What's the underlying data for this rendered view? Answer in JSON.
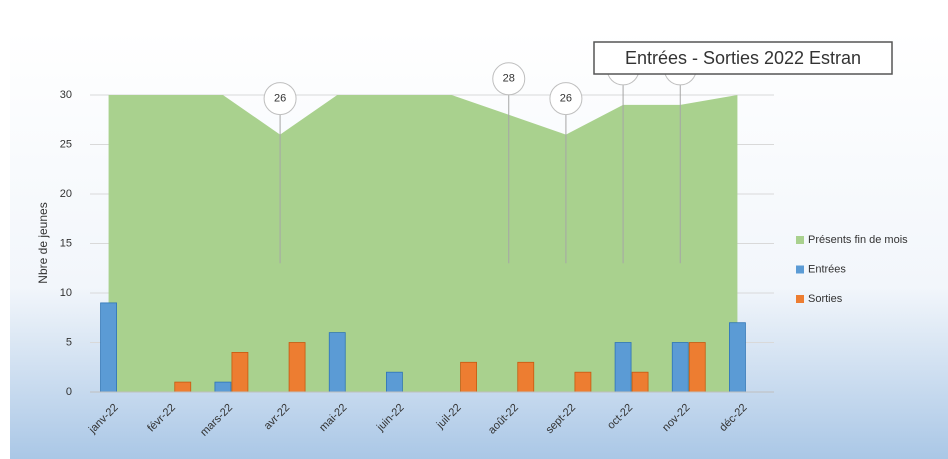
{
  "chart_data": {
    "type": "area-bar",
    "title": "Entrées - Sorties 2022 Estran",
    "y_label": "Nbre de jeunes",
    "categories": [
      "janv-22",
      "févr-22",
      "mars-22",
      "avr-22",
      "mai-22",
      "juin-22",
      "juil-22",
      "août-22",
      "sept-22",
      "oct-22",
      "nov-22",
      "déc-22"
    ],
    "series": [
      {
        "name": "Présents fin de mois",
        "color": "#a9d18e",
        "kind": "area",
        "values": [
          30,
          30,
          30,
          26,
          30,
          30,
          30,
          28,
          26,
          29,
          29,
          30
        ],
        "value_labels": [
          null,
          null,
          null,
          "26",
          null,
          null,
          null,
          "28",
          "26",
          "29",
          "29",
          null
        ]
      },
      {
        "name": "Entrées",
        "color": "#5b9bd5",
        "kind": "bar",
        "values": [
          9,
          0,
          1,
          0,
          6,
          2,
          0,
          0,
          0,
          5,
          5,
          7
        ]
      },
      {
        "name": "Sorties",
        "color": "#ed7d31",
        "kind": "bar",
        "values": [
          0,
          1,
          4,
          5,
          0,
          0,
          3,
          3,
          2,
          2,
          5,
          0
        ]
      }
    ],
    "ylim": [
      0,
      30
    ],
    "yticks": [
      0,
      5,
      10,
      15,
      20,
      25,
      30
    ],
    "grid": true,
    "legend": "right"
  }
}
